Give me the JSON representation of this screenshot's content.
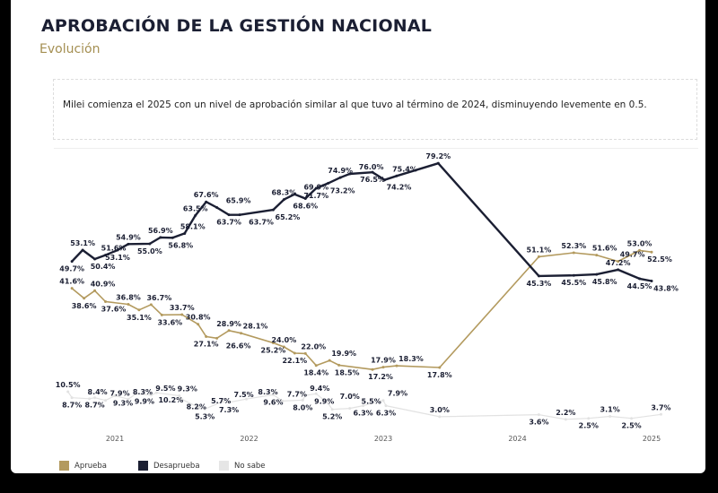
{
  "header": {
    "title": "APROBACIÓN DE LA GESTIÓN NACIONAL",
    "subtitle": "Evolución"
  },
  "note": "Milei comienza el 2025 con un nivel de aprobación similar al que tuvo al término de 2024, disminuyendo levemente en 0.5.",
  "chart_data": {
    "type": "line",
    "title": "",
    "xlabel": "",
    "ylabel": "",
    "x_ticks": [
      2021,
      2022,
      2023,
      2024,
      2025
    ],
    "xlim": [
      2020.56,
      2025.1
    ],
    "ylim": [
      0,
      82
    ],
    "grid": false,
    "legend_position": "bottom-left",
    "value_suffix": "%",
    "series": [
      {
        "name": "Aprueba",
        "color": "#b39a5e",
        "points": [
          [
            2020.68,
            41.6
          ],
          [
            2020.77,
            38.6
          ],
          [
            2020.85,
            40.9
          ],
          [
            2020.93,
            37.6
          ],
          [
            2021.1,
            36.8
          ],
          [
            2021.18,
            35.1
          ],
          [
            2021.27,
            36.7
          ],
          [
            2021.35,
            33.6
          ],
          [
            2021.5,
            33.7
          ],
          [
            2021.62,
            30.8
          ],
          [
            2021.68,
            27.1
          ],
          [
            2021.76,
            26.6
          ],
          [
            2021.85,
            28.9
          ],
          [
            2021.94,
            28.1
          ],
          [
            2022.18,
            25.2
          ],
          [
            2022.26,
            24.0
          ],
          [
            2022.34,
            22.1
          ],
          [
            2022.42,
            22.0
          ],
          [
            2022.5,
            18.4
          ],
          [
            2022.6,
            19.9
          ],
          [
            2022.67,
            18.5
          ],
          [
            2022.92,
            17.2
          ],
          [
            2023.0,
            17.9
          ],
          [
            2023.1,
            18.3
          ],
          [
            2023.42,
            17.8
          ],
          [
            2024.16,
            51.1
          ],
          [
            2024.42,
            52.3
          ],
          [
            2024.59,
            51.6
          ],
          [
            2024.75,
            49.7
          ],
          [
            2024.91,
            53.0
          ],
          [
            2025.0,
            52.5
          ]
        ]
      },
      {
        "name": "Desaprueba",
        "color": "#1b1f33",
        "points": [
          [
            2020.68,
            49.7
          ],
          [
            2020.76,
            53.1
          ],
          [
            2020.85,
            50.4
          ],
          [
            2020.93,
            51.6
          ],
          [
            2021.02,
            53.1
          ],
          [
            2021.1,
            54.9
          ],
          [
            2021.26,
            55.0
          ],
          [
            2021.34,
            56.9
          ],
          [
            2021.43,
            56.8
          ],
          [
            2021.52,
            58.1
          ],
          [
            2021.6,
            63.5
          ],
          [
            2021.68,
            67.6
          ],
          [
            2021.76,
            65.9
          ],
          [
            2021.85,
            63.7
          ],
          [
            2021.93,
            63.7
          ],
          [
            2022.18,
            65.2
          ],
          [
            2022.26,
            68.3
          ],
          [
            2022.34,
            69.9
          ],
          [
            2022.42,
            68.6
          ],
          [
            2022.5,
            71.7
          ],
          [
            2022.59,
            73.2
          ],
          [
            2022.68,
            74.9
          ],
          [
            2022.75,
            76.0
          ],
          [
            2022.92,
            76.5
          ],
          [
            2023.01,
            74.2
          ],
          [
            2023.1,
            75.4
          ],
          [
            2023.41,
            79.2
          ],
          [
            2024.16,
            45.3
          ],
          [
            2024.42,
            45.5
          ],
          [
            2024.59,
            45.8
          ],
          [
            2024.75,
            47.2
          ],
          [
            2024.91,
            44.5
          ],
          [
            2025.0,
            43.8
          ]
        ]
      },
      {
        "name": "No sabe",
        "color": "#e2e2e2",
        "points": [
          [
            2020.65,
            10.5
          ],
          [
            2020.68,
            8.7
          ],
          [
            2020.81,
            8.4
          ],
          [
            2020.85,
            8.7
          ],
          [
            2020.93,
            7.9
          ],
          [
            2021.0,
            9.3
          ],
          [
            2021.1,
            8.3
          ],
          [
            2021.16,
            9.9
          ],
          [
            2021.27,
            9.5
          ],
          [
            2021.31,
            10.2
          ],
          [
            2021.48,
            9.3
          ],
          [
            2021.5,
            8.2
          ],
          [
            2021.63,
            5.7
          ],
          [
            2021.67,
            5.3
          ],
          [
            2021.8,
            7.5
          ],
          [
            2021.85,
            7.3
          ],
          [
            2021.98,
            8.3
          ],
          [
            2022.18,
            9.6
          ],
          [
            2022.25,
            7.7
          ],
          [
            2022.4,
            8.0
          ],
          [
            2022.42,
            9.4
          ],
          [
            2022.5,
            9.9
          ],
          [
            2022.59,
            7.0
          ],
          [
            2022.62,
            5.2
          ],
          [
            2022.75,
            5.5
          ],
          [
            2022.85,
            6.3
          ],
          [
            2023.0,
            7.9
          ],
          [
            2023.02,
            6.3
          ],
          [
            2023.42,
            3.0
          ],
          [
            2024.16,
            3.6
          ],
          [
            2024.36,
            2.2
          ],
          [
            2024.53,
            2.5
          ],
          [
            2024.69,
            3.1
          ],
          [
            2024.85,
            2.5
          ],
          [
            2025.07,
            3.7
          ]
        ]
      }
    ]
  },
  "legend": [
    "Aprueba",
    "Desaprueba",
    "No sabe"
  ]
}
